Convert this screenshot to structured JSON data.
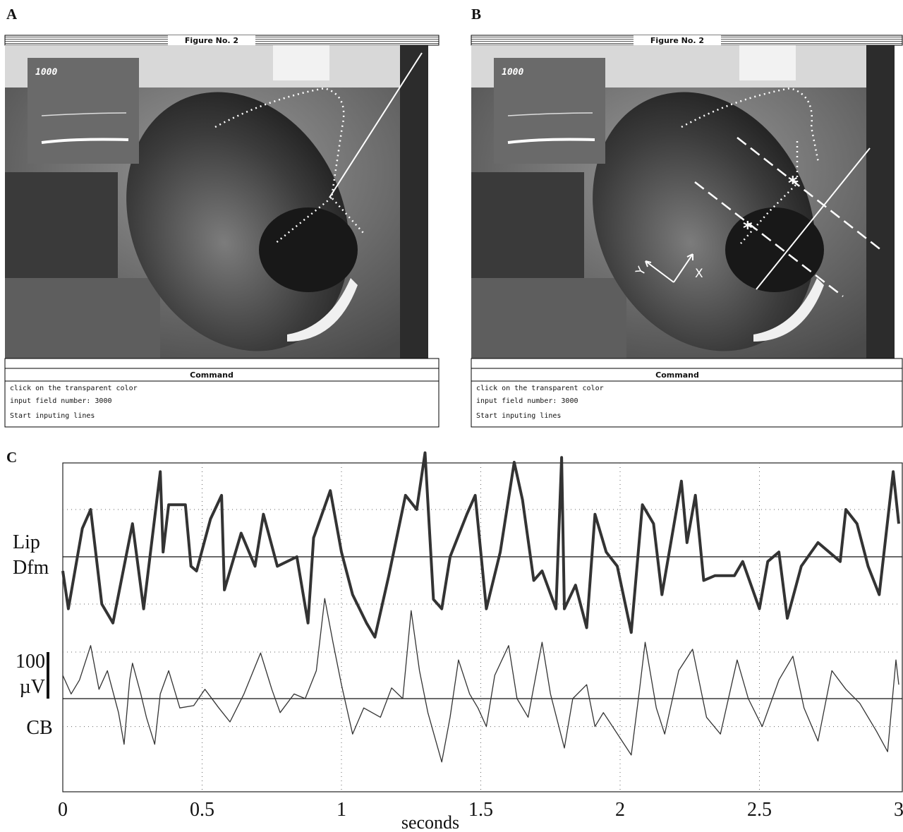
{
  "panels": [
    {
      "label": "A",
      "window_title": "Figure No. 2",
      "inset_label": "1000",
      "command_title": "Command",
      "command_lines": [
        "click on the transparent color",
        "input field number: 3000",
        "Start inputing lines"
      ]
    },
    {
      "label": "B",
      "window_title": "Figure No. 2",
      "inset_label": "1000",
      "command_title": "Command",
      "command_lines": [
        "click on the transparent color",
        "input field number: 3000",
        "Start inputing lines"
      ],
      "axis_labels": [
        "X",
        "Y"
      ]
    }
  ],
  "chart_data": {
    "type": "line",
    "panel_label": "C",
    "x_label": "seconds",
    "xlim": [
      0,
      3
    ],
    "xticks": [
      0,
      0.5,
      1,
      1.5,
      2,
      2.5,
      3
    ],
    "grid": true,
    "series": [
      {
        "labels": [
          "Lip",
          "Dfm"
        ],
        "color": "#333333",
        "ylim": [
          -2,
          2
        ],
        "grid_levels": [
          -1,
          1
        ],
        "x": [
          0,
          0.02,
          0.07,
          0.1,
          0.14,
          0.18,
          0.25,
          0.29,
          0.35,
          0.36,
          0.38,
          0.44,
          0.46,
          0.48,
          0.53,
          0.57,
          0.58,
          0.64,
          0.69,
          0.72,
          0.77,
          0.84,
          0.88,
          0.9,
          0.96,
          1.0,
          1.04,
          1.09,
          1.12,
          1.17,
          1.23,
          1.27,
          1.3,
          1.33,
          1.36,
          1.39,
          1.45,
          1.48,
          1.52,
          1.57,
          1.62,
          1.65,
          1.69,
          1.72,
          1.77,
          1.79,
          1.8,
          1.84,
          1.88,
          1.91,
          1.95,
          1.99,
          2.04,
          2.08,
          2.12,
          2.15,
          2.22,
          2.24,
          2.27,
          2.3,
          2.34,
          2.41,
          2.44,
          2.5,
          2.53,
          2.57,
          2.6,
          2.65,
          2.71,
          2.75,
          2.79,
          2.81,
          2.85,
          2.89,
          2.93,
          2.98,
          3.0
        ],
        "values": [
          -0.3,
          -1.1,
          0.6,
          1.0,
          -1.0,
          -1.4,
          0.7,
          -1.1,
          1.8,
          0.1,
          1.1,
          1.1,
          -0.2,
          -0.3,
          0.8,
          1.3,
          -0.7,
          0.5,
          -0.2,
          0.9,
          -0.2,
          0,
          -1.4,
          0.4,
          1.4,
          0.1,
          -0.8,
          -1.4,
          -1.7,
          -0.4,
          1.3,
          1.0,
          2.2,
          -0.9,
          -1.1,
          0,
          0.9,
          1.3,
          -1.1,
          0.1,
          2.0,
          1.2,
          -0.5,
          -0.3,
          -1.1,
          2.1,
          -1.1,
          -0.6,
          -1.5,
          0.9,
          0.1,
          -0.2,
          -1.6,
          1.1,
          0.7,
          -0.8,
          1.6,
          0.3,
          1.3,
          -0.5,
          -0.4,
          -0.4,
          -0.1,
          -1.1,
          -0.1,
          0.1,
          -1.3,
          -0.2,
          0.3,
          0.1,
          -0.1,
          1.0,
          0.7,
          -0.2,
          -0.8,
          1.8,
          0.7
        ]
      },
      {
        "labels": [
          "CB"
        ],
        "color": "#333333",
        "ylim": [
          -200,
          200
        ],
        "grid_levels": [
          -60,
          100
        ],
        "scale_bar": {
          "labels": [
            "100",
            "µV"
          ],
          "value": 100
        },
        "x": [
          0,
          0.03,
          0.06,
          0.1,
          0.13,
          0.16,
          0.2,
          0.22,
          0.24,
          0.25,
          0.28,
          0.3,
          0.33,
          0.35,
          0.38,
          0.42,
          0.47,
          0.51,
          0.56,
          0.6,
          0.65,
          0.71,
          0.75,
          0.78,
          0.83,
          0.87,
          0.91,
          0.94,
          0.97,
          1.0,
          1.04,
          1.08,
          1.14,
          1.18,
          1.22,
          1.25,
          1.28,
          1.31,
          1.36,
          1.39,
          1.42,
          1.46,
          1.49,
          1.52,
          1.55,
          1.6,
          1.63,
          1.67,
          1.72,
          1.75,
          1.8,
          1.83,
          1.88,
          1.91,
          1.94,
          2.04,
          2.07,
          2.09,
          2.13,
          2.16,
          2.21,
          2.26,
          2.31,
          2.36,
          2.42,
          2.46,
          2.51,
          2.57,
          2.62,
          2.66,
          2.71,
          2.76,
          2.81,
          2.86,
          2.92,
          2.96,
          2.99,
          3.0
        ],
        "values": [
          50,
          10,
          40,
          114,
          20,
          60,
          -30,
          -98,
          40,
          76,
          10,
          -40,
          -98,
          10,
          60,
          -20,
          -15,
          20,
          -20,
          -50,
          10,
          98,
          20,
          -30,
          10,
          0,
          60,
          215,
          120,
          30,
          -76,
          -20,
          -40,
          23,
          0,
          189,
          60,
          -30,
          -136,
          -40,
          83,
          10,
          -20,
          -60,
          50,
          114,
          0,
          -40,
          121,
          10,
          -106,
          0,
          30,
          -60,
          -30,
          -121,
          20,
          121,
          -20,
          -76,
          60,
          106,
          -40,
          -76,
          83,
          0,
          -60,
          40,
          91,
          -20,
          -91,
          60,
          20,
          -10,
          -70,
          -114,
          83,
          30
        ]
      }
    ]
  }
}
